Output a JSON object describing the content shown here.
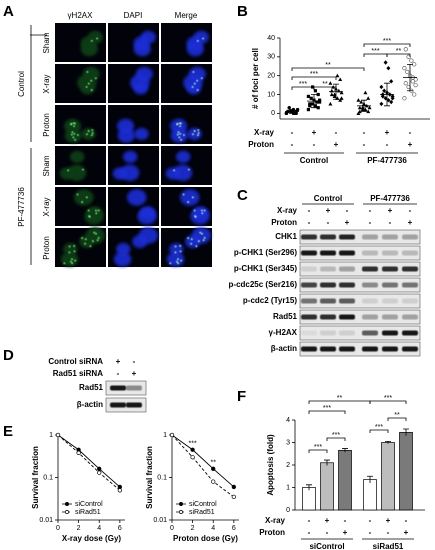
{
  "panels": {
    "microscopy": {
      "letter": "A",
      "columns": [
        "γH2AX",
        "DAPI",
        "Merge"
      ],
      "groups": [
        {
          "label": "Control",
          "rows": [
            "Sham",
            "X-ray",
            "Proton"
          ]
        },
        {
          "label": "PF-477736",
          "rows": [
            "Sham",
            "X-ray",
            "Proton"
          ]
        }
      ]
    },
    "blots": [
      {
        "letter": "C",
        "header": [
          "Control",
          "PF-477736"
        ],
        "condition_rows": [
          {
            "label": "X-ray",
            "signs": [
              "-",
              "+",
              "-",
              "-",
              "+",
              "-"
            ]
          },
          {
            "label": "Proton",
            "signs": [
              "-",
              "-",
              "+",
              "-",
              "-",
              "+"
            ]
          }
        ],
        "rows": [
          {
            "label": "CHK1",
            "intensity": [
              0.8,
              0.8,
              0.85,
              0.3,
              0.3,
              0.3
            ]
          },
          {
            "label": "p-CHK1 (Ser296)",
            "intensity": [
              0.9,
              0.9,
              0.9,
              0.2,
              0.2,
              0.2
            ]
          },
          {
            "label": "p-CHK1 (Ser345)",
            "intensity": [
              0.1,
              0.2,
              0.3,
              0.8,
              0.8,
              0.8
            ]
          },
          {
            "label": "p-cdc25c (Ser216)",
            "intensity": [
              0.7,
              0.8,
              0.8,
              0.4,
              0.5,
              0.5
            ]
          },
          {
            "label": "p-cdc2 (Tyr15)",
            "intensity": [
              0.5,
              0.6,
              0.6,
              0.1,
              0.1,
              0.1
            ]
          },
          {
            "label": "Rad51",
            "intensity": [
              0.8,
              0.8,
              0.9,
              0.3,
              0.3,
              0.3
            ]
          },
          {
            "label": "γ-H2AX",
            "intensity": [
              0.05,
              0.1,
              0.1,
              0.6,
              0.9,
              0.9
            ]
          },
          {
            "label": "β-actin",
            "intensity": [
              0.9,
              0.9,
              0.9,
              0.9,
              0.9,
              0.9
            ]
          }
        ]
      },
      {
        "letter": "D",
        "condition_rows": [
          {
            "label": "Control siRNA",
            "signs": [
              "+",
              "-"
            ]
          },
          {
            "label": "Rad51 siRNA",
            "signs": [
              "-",
              "+"
            ]
          }
        ],
        "rows": [
          {
            "label": "Rad51",
            "intensity": [
              0.9,
              0.4
            ]
          },
          {
            "label": "β-actin",
            "intensity": [
              0.9,
              0.9
            ]
          }
        ]
      }
    ]
  },
  "chart_data": [
    {
      "type": "dot",
      "letter": "B",
      "ylabel": "# of foci per cell",
      "ylim": [
        -3,
        40
      ],
      "yticks": [
        0,
        10,
        20,
        30,
        40
      ],
      "row_labels": [
        "X-ray",
        "Proton"
      ],
      "xray": [
        "-",
        "+",
        "-",
        "-",
        "+",
        "-"
      ],
      "proton": [
        "-",
        "-",
        "+",
        "-",
        "-",
        "+"
      ],
      "groups": [
        "Control",
        "PF-477736"
      ],
      "series": [
        {
          "marker": "circle",
          "values": [
            0,
            0,
            0,
            1,
            1,
            2,
            0,
            1,
            3,
            0,
            1,
            2
          ],
          "mean": 1,
          "sd": 1
        },
        {
          "marker": "square",
          "values": [
            2,
            3,
            4,
            5,
            5,
            6,
            6,
            7,
            8,
            9,
            10,
            12,
            14,
            4,
            7
          ],
          "mean": 6.5,
          "sd": 3.5
        },
        {
          "marker": "triangle",
          "values": [
            5,
            7,
            8,
            9,
            10,
            11,
            12,
            13,
            14,
            16,
            18,
            20,
            10,
            12,
            8
          ],
          "mean": 11.5,
          "sd": 4
        },
        {
          "marker": "triangle",
          "values": [
            0,
            1,
            2,
            2,
            3,
            3,
            4,
            5,
            6,
            7,
            8,
            11,
            3,
            1
          ],
          "mean": 4,
          "sd": 3
        },
        {
          "marker": "diamond",
          "values": [
            5,
            6,
            7,
            8,
            9,
            9,
            10,
            11,
            12,
            14,
            17,
            24,
            27,
            10,
            8
          ],
          "mean": 10,
          "sd": 6
        },
        {
          "marker": "circle-open",
          "values": [
            8,
            10,
            12,
            14,
            16,
            18,
            19,
            20,
            22,
            24,
            26,
            28,
            30,
            34,
            15,
            17
          ],
          "mean": 19,
          "sd": 7
        }
      ],
      "significance": [
        "**",
        "***",
        "***",
        "**",
        "***",
        "***",
        "**"
      ]
    },
    {
      "type": "line",
      "letter": "E",
      "log_y": true,
      "ylabel": "Survival fraction",
      "xlabel": "X-ray dose (Gy)",
      "x": [
        0,
        2,
        4,
        6
      ],
      "xlim": [
        0,
        6.5
      ],
      "xticks": [
        0,
        2,
        4,
        6
      ],
      "ylim": [
        0.01,
        1
      ],
      "yticks": [
        0.01,
        0.1,
        1
      ],
      "series": [
        {
          "name": "siControl",
          "color": "#000000",
          "dashed": false,
          "values": [
            1,
            0.45,
            0.16,
            0.06
          ]
        },
        {
          "name": "siRad51",
          "color": "#000000",
          "dashed": true,
          "values": [
            1,
            0.38,
            0.13,
            0.05
          ]
        }
      ],
      "significance": []
    },
    {
      "type": "line",
      "log_y": true,
      "ylabel": "Survival fraction",
      "xlabel": "Proton dose (Gy)",
      "x": [
        0,
        2,
        4,
        6
      ],
      "xlim": [
        0,
        6.5
      ],
      "xticks": [
        0,
        2,
        4,
        6
      ],
      "ylim": [
        0.01,
        1
      ],
      "yticks": [
        0.01,
        0.1,
        1
      ],
      "series": [
        {
          "name": "siControl",
          "color": "#000000",
          "dashed": false,
          "values": [
            1,
            0.45,
            0.16,
            0.06
          ]
        },
        {
          "name": "siRad51",
          "color": "#000000",
          "dashed": true,
          "values": [
            1,
            0.3,
            0.08,
            0.035
          ]
        }
      ],
      "significance": [
        "***",
        "**"
      ]
    },
    {
      "type": "bar",
      "letter": "F",
      "ylabel": "Apoptosis (fold)",
      "ylim": [
        0,
        4
      ],
      "yticks": [
        0,
        1,
        2,
        3,
        4
      ],
      "values": [
        1.0,
        2.1,
        2.65,
        1.35,
        3.0,
        3.45
      ],
      "errors": [
        0.12,
        0.12,
        0.08,
        0.15,
        0.05,
        0.15
      ],
      "colors": [
        "#ffffff",
        "#bdbdbd",
        "#7a7a7a",
        "#ffffff",
        "#bdbdbd",
        "#7a7a7a"
      ],
      "row_labels": [
        "X-ray",
        "Proton"
      ],
      "xray": [
        "-",
        "+",
        "-",
        "-",
        "+",
        "-"
      ],
      "proton": [
        "-",
        "-",
        "+",
        "-",
        "-",
        "+"
      ],
      "groups": [
        "siControl",
        "siRad51"
      ],
      "significance": [
        "**",
        "***",
        "***",
        "**",
        "***",
        "***",
        "***"
      ]
    }
  ]
}
